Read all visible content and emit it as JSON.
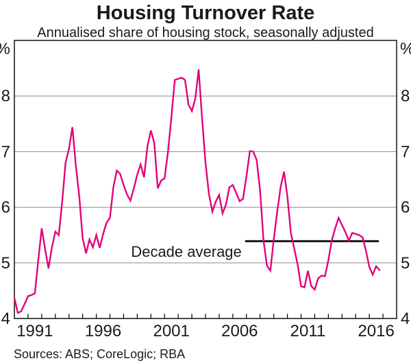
{
  "header": {
    "title": "Housing Turnover Rate",
    "subtitle": "Annualised share of housing stock, seasonally adjusted"
  },
  "footer": {
    "sources": "Sources: ABS; CoreLogic; RBA"
  },
  "chart_data": {
    "type": "line",
    "title": "Housing Turnover Rate",
    "subtitle": "Annualised share of housing stock, seasonally adjusted",
    "unit_label": "%",
    "xlim": [
      1990,
      2018
    ],
    "ylim": [
      4,
      9
    ],
    "yticks": [
      4,
      5,
      6,
      7,
      8
    ],
    "ygridlines": [
      5,
      6,
      7,
      8
    ],
    "xticks": {
      "minor_from": 1991,
      "minor_to": 2017,
      "labeled_years": [
        1991,
        1996,
        2001,
        2006,
        2011,
        2016
      ]
    },
    "grid_color": "#999999",
    "frame_color": "#000000",
    "annotation": {
      "label": "Decade average",
      "value": 5.39,
      "x_from": 2006.9,
      "x_to": 2016.7,
      "color": "#000000"
    },
    "series": [
      {
        "name": "Housing turnover rate",
        "color": "#E4017C",
        "x_start": 1990.0,
        "x_step_years": 0.25,
        "values": [
          4.37,
          4.1,
          4.13,
          4.26,
          4.4,
          4.42,
          4.45,
          5.05,
          5.62,
          5.25,
          4.9,
          5.28,
          5.56,
          5.5,
          6.1,
          6.8,
          7.05,
          7.44,
          6.75,
          6.2,
          5.45,
          5.17,
          5.42,
          5.28,
          5.5,
          5.27,
          5.52,
          5.72,
          5.81,
          6.36,
          6.66,
          6.6,
          6.4,
          6.23,
          6.12,
          6.34,
          6.59,
          6.77,
          6.54,
          7.1,
          7.38,
          7.15,
          6.34,
          6.48,
          6.52,
          6.99,
          7.62,
          8.29,
          8.31,
          8.33,
          8.29,
          7.85,
          7.73,
          7.95,
          8.48,
          7.6,
          6.8,
          6.24,
          5.92,
          6.1,
          6.22,
          5.89,
          6.05,
          6.36,
          6.4,
          6.26,
          6.11,
          6.15,
          6.56,
          7.01,
          7.0,
          6.85,
          6.3,
          5.4,
          4.95,
          4.86,
          5.42,
          5.91,
          6.36,
          6.64,
          6.19,
          5.54,
          5.26,
          4.97,
          4.58,
          4.56,
          4.86,
          4.58,
          4.52,
          4.72,
          4.77,
          4.76,
          5.05,
          5.4,
          5.62,
          5.81,
          5.68,
          5.55,
          5.4,
          5.54,
          5.52,
          5.5,
          5.46,
          5.22,
          4.93,
          4.79,
          4.94,
          4.87
        ]
      }
    ]
  }
}
